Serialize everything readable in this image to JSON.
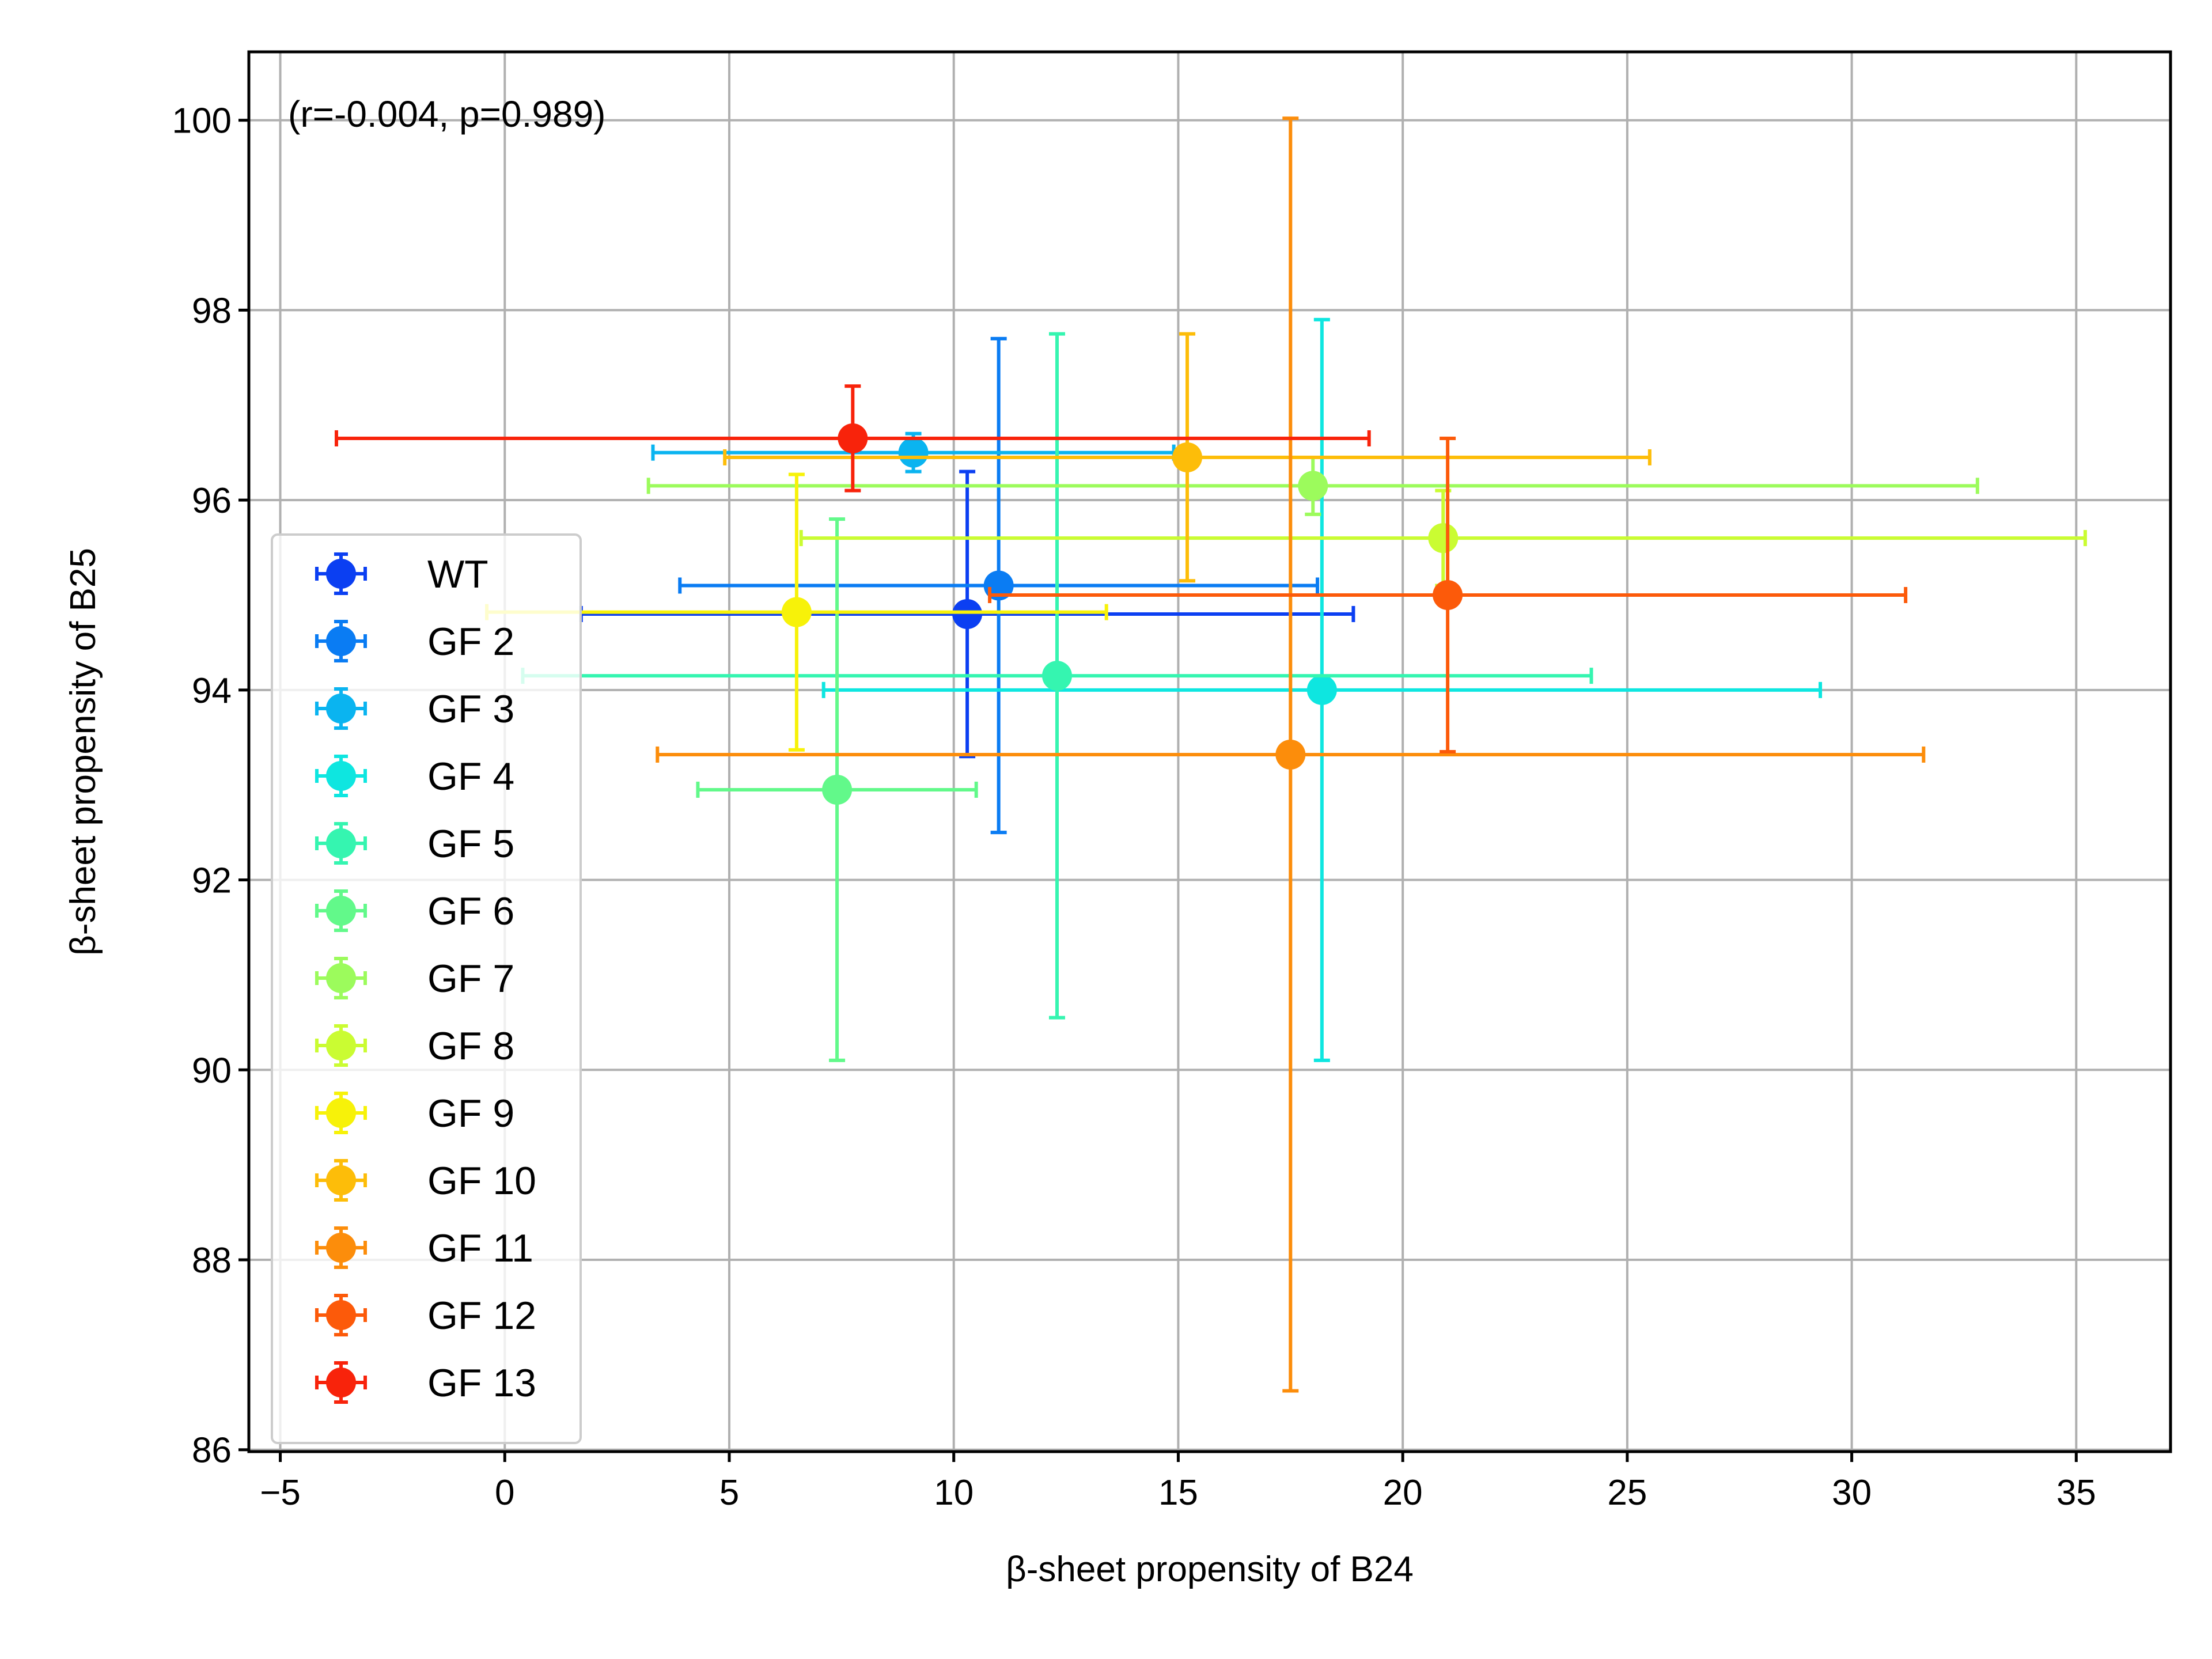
{
  "chart_data": {
    "type": "scatter",
    "title": "",
    "xlabel": "β-sheet propensity of B24",
    "ylabel": "β-sheet propensity of B25",
    "xlim": [
      -5.7,
      37.1
    ],
    "ylim": [
      85.98,
      100.72
    ],
    "xticks": [
      -5,
      0,
      5,
      10,
      15,
      20,
      25,
      30,
      35
    ],
    "yticks": [
      86,
      88,
      90,
      92,
      94,
      96,
      98,
      100
    ],
    "xtick_labels": [
      "−5",
      "0",
      "5",
      "10",
      "15",
      "20",
      "25",
      "30",
      "35"
    ],
    "ytick_labels": [
      "86",
      "88",
      "90",
      "92",
      "94",
      "96",
      "98",
      "100"
    ],
    "grid": true,
    "legend_position": "lower-left",
    "annotation": "(r=-0.004, p=0.989)",
    "series": [
      {
        "name": "WT",
        "color": "#0b3ff2",
        "x": 10.3,
        "y": 94.8,
        "xerr": 8.6,
        "yerr": 1.5
      },
      {
        "name": "GF 2",
        "color": "#0a7cf3",
        "x": 11.0,
        "y": 95.1,
        "xerr": 7.1,
        "yerr": 2.6
      },
      {
        "name": "GF 3",
        "color": "#0ab4f0",
        "x": 9.1,
        "y": 96.5,
        "xerr": 5.8,
        "yerr": 0.2
      },
      {
        "name": "GF 4",
        "color": "#0ee6e0",
        "x": 18.2,
        "y": 94.0,
        "xerr": 11.1,
        "yerr": 3.9
      },
      {
        "name": "GF 5",
        "color": "#35f5b0",
        "x": 12.3,
        "y": 94.15,
        "xerr": 11.9,
        "yerr": 3.6
      },
      {
        "name": "GF 6",
        "color": "#62f98a",
        "x": 7.4,
        "y": 92.95,
        "xerr": 3.1,
        "yerr": 2.85
      },
      {
        "name": "GF 7",
        "color": "#9cfb5c",
        "x": 18.0,
        "y": 96.15,
        "xerr": 14.8,
        "yerr": 0.3
      },
      {
        "name": "GF 8",
        "color": "#cafc32",
        "x": 20.9,
        "y": 95.6,
        "xerr": 14.3,
        "yerr": 0.5
      },
      {
        "name": "GF 9",
        "color": "#f7f209",
        "x": 6.5,
        "y": 94.82,
        "xerr": 6.9,
        "yerr": 1.45
      },
      {
        "name": "GF 10",
        "color": "#fdbd09",
        "x": 15.2,
        "y": 96.45,
        "xerr": 10.3,
        "yerr": 1.3
      },
      {
        "name": "GF 11",
        "color": "#fc8d0b",
        "x": 17.5,
        "y": 93.32,
        "xerr": 14.1,
        "yerr": 6.7
      },
      {
        "name": "GF 12",
        "color": "#fc5a0a",
        "x": 21.0,
        "y": 95.0,
        "xerr": 10.2,
        "yerr": 1.65
      },
      {
        "name": "GF 13",
        "color": "#f8230b",
        "x": 7.75,
        "y": 96.65,
        "xerr": 11.5,
        "yerr": 0.55
      }
    ]
  }
}
